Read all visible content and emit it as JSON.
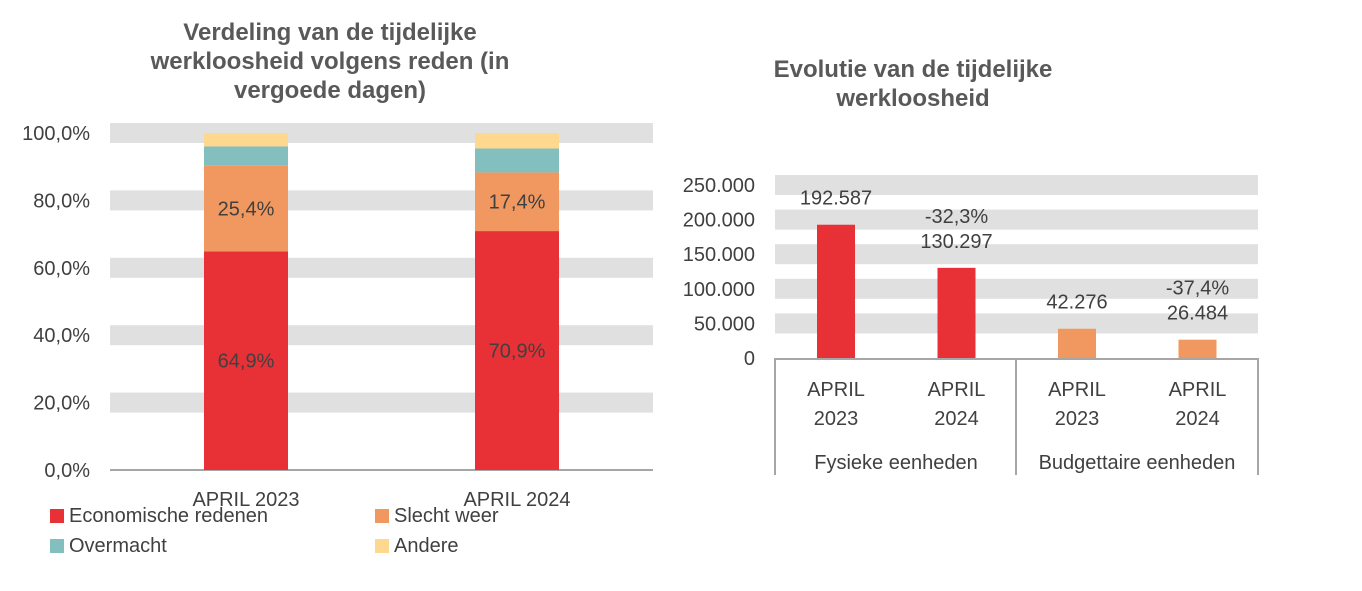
{
  "chart_data": [
    {
      "type": "bar",
      "stacked": true,
      "title": "Verdeling van de tijdelijke werkloosheid volgens reden (in vergoede dagen)",
      "title_lines": [
        "Verdeling van de tijdelijke",
        "werkloosheid volgens reden (in",
        "vergoede dagen)"
      ],
      "categories": [
        "APRIL 2023",
        "APRIL 2024"
      ],
      "ylim": [
        0,
        100
      ],
      "yticks": [
        "0,0%",
        "20,0%",
        "40,0%",
        "60,0%",
        "80,0%",
        "100,0%"
      ],
      "legend_position": "bottom",
      "series": [
        {
          "name": "Economische redenen",
          "color": "#E83137",
          "values": [
            64.9,
            70.9
          ],
          "labels": [
            "64,9%",
            "70,9%"
          ]
        },
        {
          "name": "Slecht weer",
          "color": "#F0985F",
          "values": [
            25.4,
            17.4
          ],
          "labels": [
            "25,4%",
            "17,4%"
          ]
        },
        {
          "name": "Overmacht",
          "color": "#83BFBF",
          "values": [
            5.7,
            7.1
          ]
        },
        {
          "name": "Andere",
          "color": "#FFD890",
          "values": [
            4.0,
            4.6
          ]
        }
      ]
    },
    {
      "type": "bar",
      "title": "Evolutie van de tijdelijke werkloosheid",
      "title_lines": [
        "Evolutie van de tijdelijke",
        "werkloosheid"
      ],
      "ylim": [
        0,
        250000
      ],
      "yticks": [
        "0",
        "50.000",
        "100.000",
        "150.000",
        "200.000",
        "250.000"
      ],
      "groups": [
        {
          "name": "Fysieke eenheden",
          "color": "#E83137",
          "categories": [
            [
              "APRIL",
              "2023"
            ],
            [
              "APRIL",
              "2024"
            ]
          ],
          "values": [
            192587,
            130297
          ],
          "labels": [
            "192.587",
            "130.297"
          ],
          "changes": [
            "",
            "-32,3%"
          ]
        },
        {
          "name": "Budgettaire eenheden",
          "color": "#F0985F",
          "categories": [
            [
              "APRIL",
              "2023"
            ],
            [
              "APRIL",
              "2024"
            ]
          ],
          "values": [
            42276,
            26484
          ],
          "labels": [
            "42.276",
            "26.484"
          ],
          "changes": [
            "",
            "-37,4%"
          ]
        }
      ]
    }
  ]
}
